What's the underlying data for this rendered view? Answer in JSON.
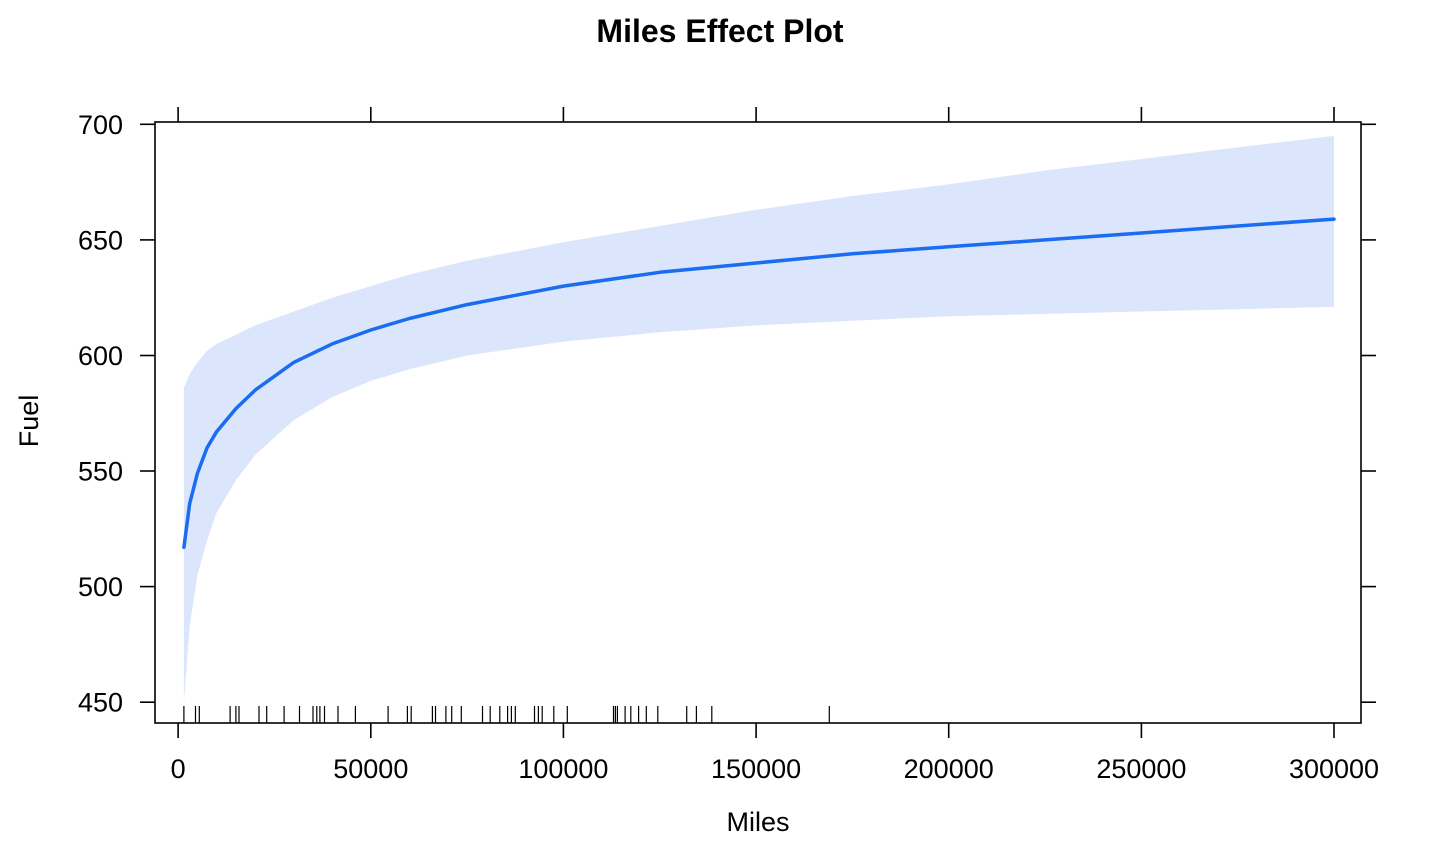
{
  "chart_data": {
    "type": "line",
    "title": "Miles Effect Plot",
    "xlabel": "Miles",
    "ylabel": "Fuel",
    "xlim": [
      -6000,
      307000
    ],
    "ylim": [
      441,
      701
    ],
    "x_ticks": [
      0,
      50000,
      100000,
      150000,
      200000,
      250000,
      300000
    ],
    "x_tick_labels": [
      "0",
      "50000",
      "100000",
      "150000",
      "200000",
      "250000",
      "300000"
    ],
    "y_ticks": [
      450,
      500,
      550,
      600,
      650,
      700
    ],
    "y_tick_labels": [
      "450",
      "500",
      "550",
      "600",
      "650",
      "700"
    ],
    "grid": false,
    "colors": {
      "line": "#1a6cf0",
      "band": "#dbe6fd",
      "axis": "#000000"
    },
    "series": [
      {
        "x": [
          1500,
          3000,
          5000,
          7500,
          10000,
          15000,
          20000,
          30000,
          40000,
          50000,
          60000,
          75000,
          100000,
          125000,
          150000,
          175000,
          200000,
          225000,
          250000,
          275000,
          300000
        ],
        "fit": [
          517,
          536,
          549,
          560,
          567,
          577,
          585,
          597,
          605,
          611,
          616,
          622,
          630,
          636,
          640,
          644,
          647,
          650,
          653,
          656,
          659
        ],
        "lower": [
          450,
          483,
          505,
          520,
          532,
          546,
          557,
          572,
          582,
          589,
          594,
          600,
          606,
          610,
          613,
          615,
          617,
          618,
          619,
          620,
          621
        ],
        "upper": [
          586,
          592,
          597,
          602,
          605,
          609,
          613,
          619,
          625,
          630,
          635,
          641,
          649,
          656,
          663,
          669,
          674,
          680,
          685,
          690,
          695
        ]
      }
    ],
    "rug": [
      1500,
      4500,
      5500,
      13500,
      15000,
      15800,
      21000,
      23000,
      27500,
      31500,
      35000,
      36000,
      36800,
      38000,
      41500,
      46000,
      54500,
      59500,
      60500,
      66000,
      66800,
      69500,
      71000,
      73500,
      79000,
      81000,
      83500,
      85500,
      86500,
      87500,
      92500,
      93500,
      94500,
      97500,
      101000,
      113000,
      113500,
      114000,
      116000,
      117500,
      119500,
      121500,
      124500,
      132000,
      134500,
      138500,
      169000
    ]
  }
}
